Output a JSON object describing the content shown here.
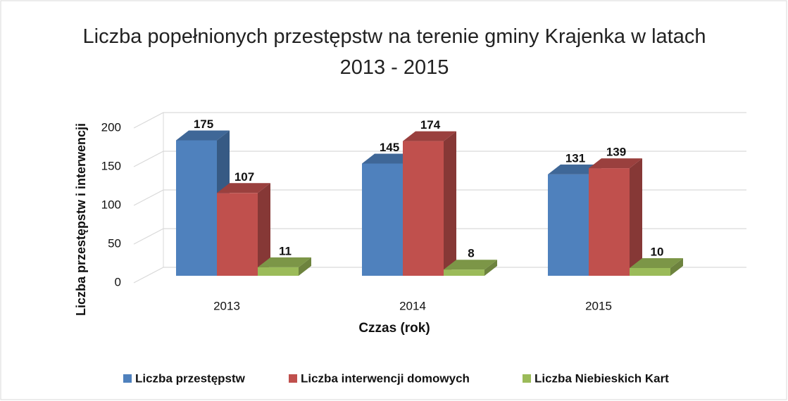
{
  "chart_data": {
    "type": "bar3d",
    "title": "Liczba popełnionych  przestępstw na terenie gminy Krajenka w latach 2013 - 2015",
    "x_label": "Czzas (rok)",
    "y_label": "Liczba przestępstw i interwencji",
    "categories": [
      "2013",
      "2014",
      "2015"
    ],
    "series": [
      {
        "name": "Liczba przestępstw",
        "color": "#4f81bd",
        "values": [
          175,
          145,
          131
        ]
      },
      {
        "name": "Liczba interwencji domowych",
        "color": "#c0504d",
        "values": [
          107,
          174,
          139
        ]
      },
      {
        "name": "Liczba Niebieskich Kart",
        "color": "#9bbb59",
        "values": [
          11,
          8,
          10
        ]
      }
    ],
    "ylim": [
      0,
      200
    ],
    "yticks": [
      0,
      50,
      100,
      150,
      200
    ],
    "grid": true
  }
}
